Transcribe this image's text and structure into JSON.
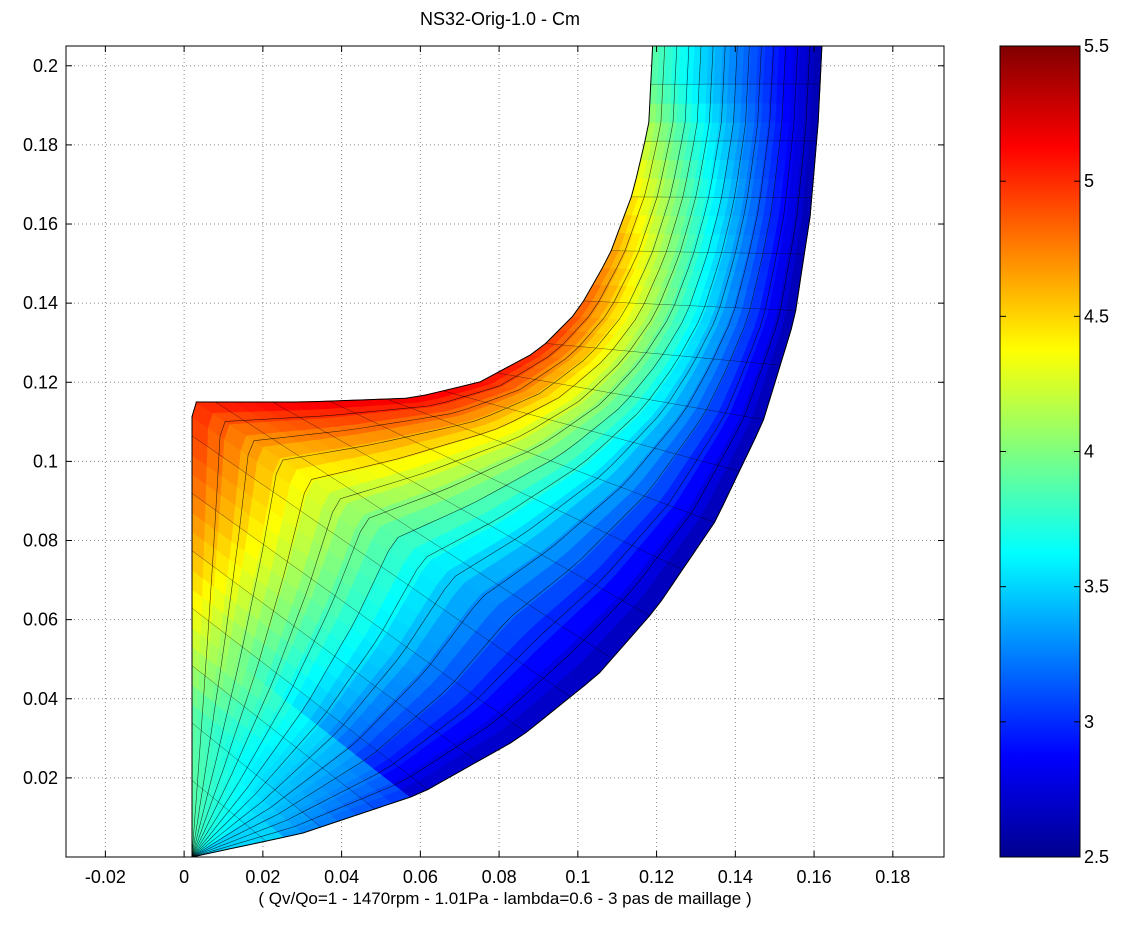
{
  "chart_data": {
    "type": "contour",
    "title": "NS32-Orig-1.0 - Cm",
    "xlabel": "( Qv/Qo=1 - 1470rpm - 1.01Pa - lambda=0.6 - 3 pas de maillage )",
    "ylabel": "",
    "xlim": [
      -0.03,
      0.193
    ],
    "ylim": [
      0,
      0.205
    ],
    "xticks": [
      -0.02,
      0,
      0.02,
      0.04,
      0.06,
      0.08,
      0.1,
      0.12,
      0.14,
      0.16,
      0.18
    ],
    "xtick_labels": [
      "-0.02",
      "0",
      "0.02",
      "0.04",
      "0.06",
      "0.08",
      "0.1",
      "0.12",
      "0.14",
      "0.16",
      "0.18"
    ],
    "yticks": [
      0.02,
      0.04,
      0.06,
      0.08,
      0.1,
      0.12,
      0.14,
      0.16,
      0.18,
      0.2
    ],
    "ytick_labels": [
      "0.02",
      "0.04",
      "0.06",
      "0.08",
      "0.1",
      "0.12",
      "0.14",
      "0.16",
      "0.18",
      "0.2"
    ],
    "grid": true,
    "colorbar": {
      "range": [
        2.5,
        5.5
      ],
      "colormap": "jet",
      "ticks": [
        2.5,
        3,
        3.5,
        4,
        4.5,
        5,
        5.5
      ],
      "tick_labels": [
        "2.5",
        "3",
        "3.5",
        "4",
        "4.5",
        "5",
        "5.5"
      ]
    },
    "domain_shape": {
      "hub_line": [
        [
          0.002,
          0.0
        ],
        [
          0.002,
          0.115
        ],
        [
          0.03,
          0.115
        ],
        [
          0.058,
          0.116
        ],
        [
          0.075,
          0.12
        ],
        [
          0.09,
          0.128
        ],
        [
          0.1,
          0.138
        ],
        [
          0.108,
          0.152
        ],
        [
          0.114,
          0.168
        ],
        [
          0.118,
          0.185
        ],
        [
          0.119,
          0.205
        ]
      ],
      "shroud_line": [
        [
          0.002,
          0.0
        ],
        [
          0.03,
          0.006
        ],
        [
          0.06,
          0.016
        ],
        [
          0.085,
          0.03
        ],
        [
          0.105,
          0.046
        ],
        [
          0.12,
          0.063
        ],
        [
          0.135,
          0.085
        ],
        [
          0.147,
          0.11
        ],
        [
          0.155,
          0.136
        ],
        [
          0.159,
          0.162
        ],
        [
          0.161,
          0.185
        ],
        [
          0.162,
          0.205
        ]
      ]
    },
    "field_summary": {
      "max_region": [
        0.082,
        0.118
      ],
      "max_value": 5.2,
      "min_region": [
        0.161,
        0.195
      ],
      "min_value": 2.6,
      "inlet_center_value": 3.9
    }
  }
}
